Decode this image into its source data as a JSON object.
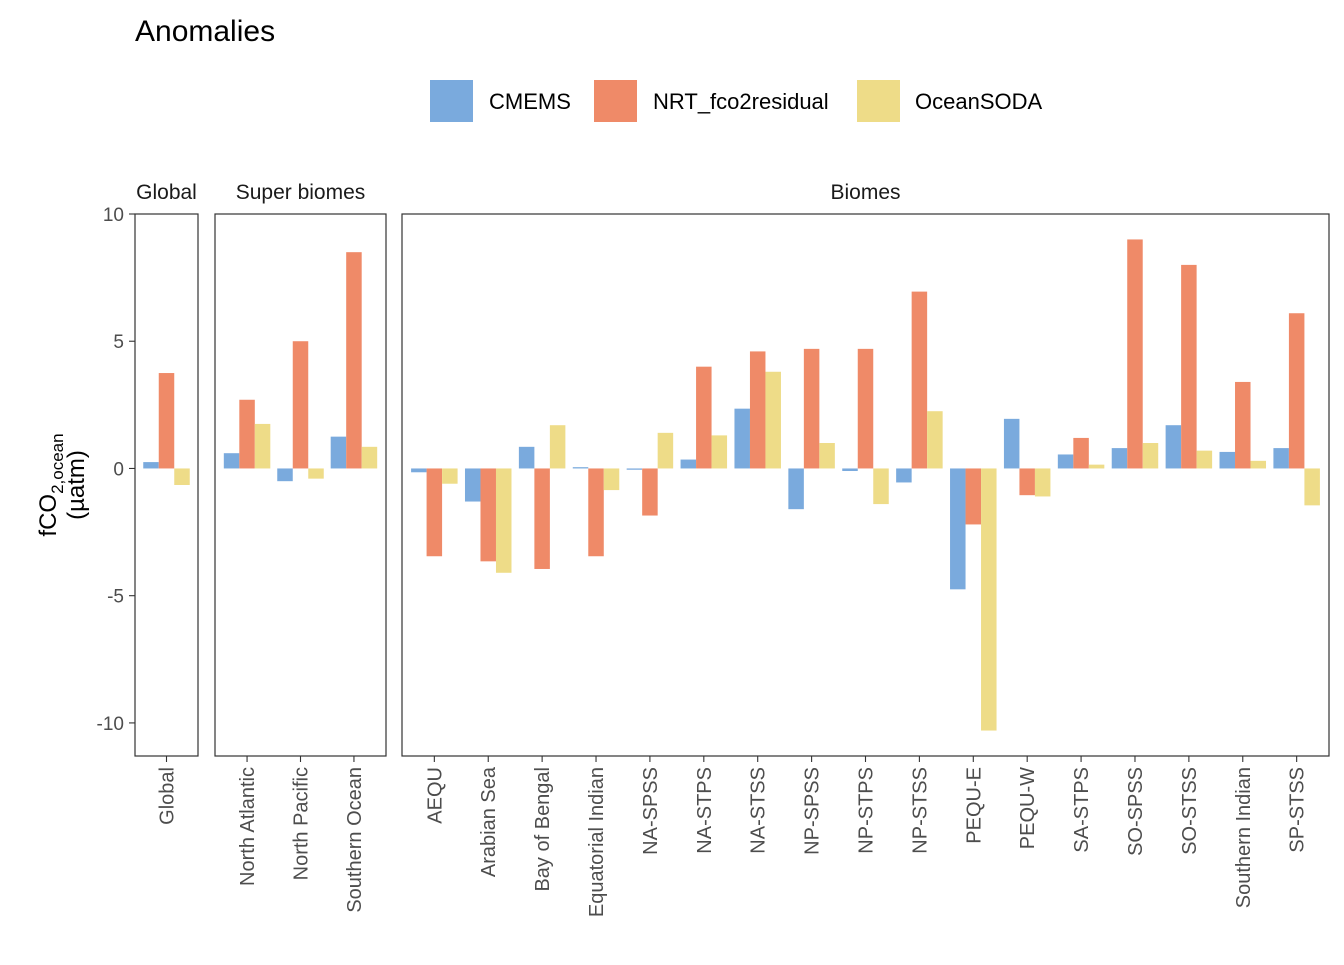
{
  "chart_data": {
    "type": "bar",
    "title": "Anomalies",
    "ylabel_main": "fCO",
    "ylabel_sub": "2,ocean",
    "ylabel_units": "(µatm)",
    "ylim": [
      -11.3,
      10
    ],
    "yticks": [
      -10,
      -5,
      0,
      5,
      10
    ],
    "ytick_labels": [
      "-10",
      "-5",
      "0",
      "5",
      "10"
    ],
    "legend_position": "top",
    "series": [
      {
        "name": "CMEMS",
        "color": "#7aaadd"
      },
      {
        "name": "NRT_fco2residual",
        "color": "#ef8a68"
      },
      {
        "name": "OceanSODA",
        "color": "#eedc88"
      }
    ],
    "panels": [
      {
        "strip": "Global",
        "categories": [
          "Global"
        ],
        "values": [
          [
            0.25
          ],
          [
            3.75
          ],
          [
            -0.65
          ]
        ]
      },
      {
        "strip": "Super biomes",
        "categories": [
          "North Atlantic",
          "North Pacific",
          "Southern Ocean"
        ],
        "values": [
          [
            0.6,
            -0.5,
            1.25
          ],
          [
            2.7,
            5.0,
            8.5
          ],
          [
            1.75,
            -0.4,
            0.85
          ]
        ]
      },
      {
        "strip": "Biomes",
        "categories": [
          "AEQU",
          "Arabian Sea",
          "Bay of Bengal",
          "Equatorial Indian",
          "NA-SPSS",
          "NA-STPS",
          "NA-STSS",
          "NP-SPSS",
          "NP-STPS",
          "NP-STSS",
          "PEQU-E",
          "PEQU-W",
          "SA-STPS",
          "SO-SPSS",
          "SO-STSS",
          "Southern Indian",
          "SP-STSS"
        ],
        "values": [
          [
            -0.15,
            -1.3,
            0.85,
            0.05,
            -0.05,
            0.35,
            2.35,
            -1.6,
            -0.1,
            -0.55,
            -4.75,
            1.95,
            0.55,
            0.8,
            1.7,
            0.65,
            0.8
          ],
          [
            -3.45,
            -3.65,
            -3.95,
            -3.45,
            -1.85,
            4.0,
            4.6,
            4.7,
            4.7,
            6.95,
            -2.2,
            -1.05,
            1.2,
            9.0,
            8.0,
            3.4,
            6.1
          ],
          [
            -0.6,
            -4.1,
            1.7,
            -0.85,
            1.4,
            1.3,
            3.8,
            1.0,
            -1.4,
            2.25,
            -10.3,
            -1.1,
            0.15,
            1.0,
            0.7,
            0.3,
            -1.45
          ]
        ]
      }
    ]
  }
}
